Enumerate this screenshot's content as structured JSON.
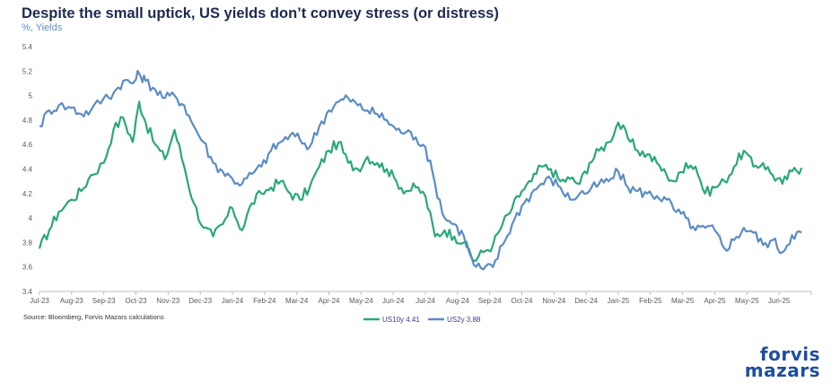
{
  "chart_data": {
    "type": "line",
    "title": "Despite the small uptick, US yields don’t convey stress (or distress)",
    "subtitle": "%, Yields",
    "source": "Source: Bloomberg, Forvis Mazars calculations",
    "ylim": [
      3.4,
      5.4
    ],
    "yticks": [
      "3.4",
      "3.6",
      "3.8",
      "4",
      "4.2",
      "4.4",
      "4.6",
      "4.8",
      "5",
      "5.2",
      "5.4"
    ],
    "xticks": [
      "Jul-23",
      "Aug-23",
      "Sep-23",
      "Oct-23",
      "Nov-23",
      "Dec-23",
      "Jan-24",
      "Feb-24",
      "Mar-24",
      "Apr-24",
      "May-24",
      "Jun-24",
      "Jul-24",
      "Aug-24",
      "Sep-24",
      "Oct-24",
      "Nov-24",
      "Dec-24",
      "Jan-25",
      "Feb-25",
      "Mar-25",
      "Apr-25",
      "May-25",
      "Jun-25"
    ],
    "grid": false,
    "legend_position": "bottom",
    "series": [
      {
        "name": "US10y 4.41",
        "color": "#2aa77a",
        "x": [
          0,
          0.3,
          0.6,
          1.0,
          1.3,
          1.6,
          2.0,
          2.3,
          2.6,
          2.9,
          3.1,
          3.3,
          3.6,
          3.9,
          4.2,
          4.5,
          4.8,
          5.1,
          5.4,
          5.7,
          6.0,
          6.3,
          6.6,
          6.9,
          7.2,
          7.5,
          7.8,
          8.1,
          8.4,
          8.7,
          9.0,
          9.3,
          9.6,
          9.9,
          10.2,
          10.5,
          10.8,
          11.1,
          11.4,
          11.7,
          12.0,
          12.3,
          12.6,
          12.9,
          13.2,
          13.5,
          13.8,
          14.1,
          14.4,
          14.7,
          15.0,
          15.3,
          15.6,
          15.9,
          16.2,
          16.5,
          16.8,
          17.1,
          17.4,
          17.7,
          18.0,
          18.3,
          18.6,
          18.9,
          19.2,
          19.5,
          19.8,
          20.1,
          20.4,
          20.7,
          21.0,
          21.3,
          21.6,
          21.9,
          22.2,
          22.5,
          22.8,
          23.1,
          23.4,
          23.7
        ],
        "values": [
          3.75,
          3.9,
          4.05,
          4.15,
          4.22,
          4.35,
          4.45,
          4.72,
          4.82,
          4.62,
          4.95,
          4.78,
          4.6,
          4.48,
          4.72,
          4.42,
          4.12,
          3.92,
          3.85,
          3.95,
          4.08,
          3.9,
          4.12,
          4.2,
          4.25,
          4.3,
          4.2,
          4.15,
          4.25,
          4.42,
          4.55,
          4.62,
          4.45,
          4.4,
          4.5,
          4.45,
          4.4,
          4.3,
          4.22,
          4.25,
          4.18,
          3.85,
          3.9,
          3.85,
          3.8,
          3.65,
          3.72,
          3.78,
          3.95,
          4.08,
          4.22,
          4.3,
          4.42,
          4.4,
          4.3,
          4.32,
          4.28,
          4.45,
          4.55,
          4.62,
          4.78,
          4.65,
          4.55,
          4.52,
          4.45,
          4.35,
          4.3,
          4.45,
          4.42,
          4.2,
          4.25,
          4.3,
          4.42,
          4.55,
          4.42,
          4.45,
          4.35,
          4.28,
          4.38,
          4.41
        ]
      },
      {
        "name": "US2y 3.88",
        "color": "#5b8cc4",
        "x": [
          0,
          0.3,
          0.6,
          1.0,
          1.3,
          1.6,
          2.0,
          2.3,
          2.6,
          2.9,
          3.1,
          3.3,
          3.6,
          3.9,
          4.2,
          4.5,
          4.8,
          5.1,
          5.4,
          5.7,
          6.0,
          6.3,
          6.6,
          6.9,
          7.2,
          7.5,
          7.8,
          8.1,
          8.4,
          8.7,
          9.0,
          9.3,
          9.6,
          9.9,
          10.2,
          10.5,
          10.8,
          11.1,
          11.4,
          11.7,
          12.0,
          12.3,
          12.6,
          12.9,
          13.2,
          13.5,
          13.8,
          14.1,
          14.4,
          14.7,
          15.0,
          15.3,
          15.6,
          15.9,
          16.2,
          16.5,
          16.8,
          17.1,
          17.4,
          17.7,
          18.0,
          18.3,
          18.6,
          18.9,
          19.2,
          19.5,
          19.8,
          20.1,
          20.4,
          20.7,
          21.0,
          21.3,
          21.6,
          21.9,
          22.2,
          22.5,
          22.8,
          23.1,
          23.4,
          23.7
        ],
        "values": [
          4.75,
          4.88,
          4.92,
          4.9,
          4.85,
          4.88,
          4.98,
          5.02,
          5.12,
          5.1,
          5.18,
          5.12,
          5.05,
          4.98,
          5.0,
          4.92,
          4.75,
          4.62,
          4.45,
          4.38,
          4.32,
          4.28,
          4.36,
          4.42,
          4.55,
          4.62,
          4.68,
          4.64,
          4.58,
          4.75,
          4.88,
          4.95,
          4.98,
          4.92,
          4.88,
          4.85,
          4.8,
          4.72,
          4.7,
          4.66,
          4.58,
          4.28,
          4.0,
          3.95,
          3.85,
          3.62,
          3.58,
          3.6,
          3.78,
          3.95,
          4.1,
          4.2,
          4.28,
          4.32,
          4.25,
          4.15,
          4.2,
          4.22,
          4.28,
          4.3,
          4.38,
          4.25,
          4.22,
          4.2,
          4.18,
          4.15,
          4.05,
          4.0,
          3.9,
          3.92,
          3.9,
          3.75,
          3.82,
          3.92,
          3.88,
          3.78,
          3.82,
          3.72,
          3.86,
          3.88
        ]
      }
    ]
  },
  "logo": {
    "line1": "forvis",
    "line2": "mazars"
  }
}
